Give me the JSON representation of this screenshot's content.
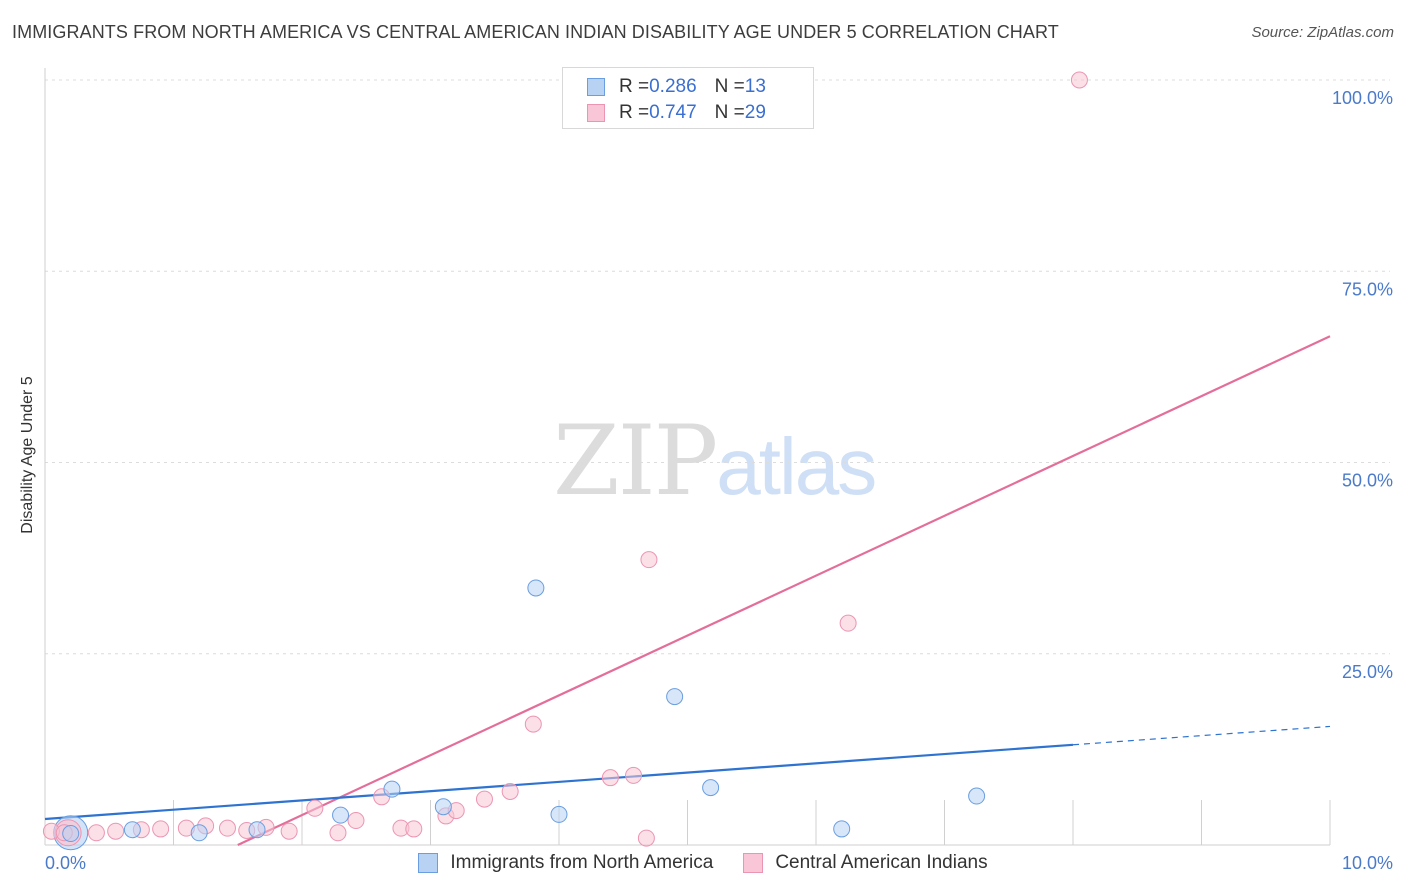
{
  "header": {
    "title": "IMMIGRANTS FROM NORTH AMERICA VS CENTRAL AMERICAN INDIAN DISABILITY AGE UNDER 5 CORRELATION CHART",
    "source": "Source: ZipAtlas.com"
  },
  "watermark": {
    "zip": "ZIP",
    "atlas": "atlas"
  },
  "legend": {
    "series1": {
      "r_label": "R = ",
      "r_value": "0.286",
      "n_label": "N = ",
      "n_value": "13"
    },
    "series2": {
      "r_label": "R = ",
      "r_value": "0.747",
      "n_label": "N = ",
      "n_value": "29"
    }
  },
  "colors": {
    "blue_fill": "#b8d2f4",
    "blue_stroke": "#6a9ee0",
    "blue_line": "#2e73d0",
    "pink_fill": "#f8c6d6",
    "pink_stroke": "#ec95b2",
    "pink_line": "#e46e9a",
    "grid": "#dcdcdc",
    "tick_text": "#4a7ac9"
  },
  "chart_data": {
    "type": "scatter",
    "title": "IMMIGRANTS FROM NORTH AMERICA VS CENTRAL AMERICAN INDIAN DISABILITY AGE UNDER 5 CORRELATION CHART",
    "xlabel": "",
    "ylabel": "Disability Age Under 5",
    "xlim": [
      0,
      10
    ],
    "ylim": [
      0,
      100
    ],
    "x_ticks": [
      "0.0%",
      "10.0%"
    ],
    "y_ticks": [
      "25.0%",
      "50.0%",
      "75.0%",
      "100.0%"
    ],
    "y_tick_values": [
      25,
      50,
      75,
      100
    ],
    "grid": true,
    "legend_position": "top-center",
    "series": [
      {
        "name": "Immigrants from North America",
        "color": "#b8d2f4",
        "points": [
          [
            0.2,
            1.5
          ],
          [
            0.68,
            2.0
          ],
          [
            1.2,
            1.6
          ],
          [
            1.65,
            2.0
          ],
          [
            2.3,
            3.9
          ],
          [
            2.7,
            7.3
          ],
          [
            3.1,
            5.0
          ],
          [
            3.82,
            33.6
          ],
          [
            4.0,
            4.0
          ],
          [
            4.9,
            19.4
          ],
          [
            5.18,
            7.5
          ],
          [
            6.2,
            2.1
          ],
          [
            7.25,
            6.4
          ]
        ],
        "trend": {
          "x": [
            0,
            8.0
          ],
          "y": [
            3.4,
            13.1
          ],
          "dashed_x": [
            8.0,
            10.0
          ],
          "dashed_y": [
            13.1,
            15.5
          ]
        }
      },
      {
        "name": "Central American Indians",
        "color": "#f8c6d6",
        "points": [
          [
            0.05,
            1.8
          ],
          [
            0.15,
            1.6
          ],
          [
            0.4,
            1.6
          ],
          [
            0.55,
            1.8
          ],
          [
            0.75,
            2.0
          ],
          [
            0.9,
            2.1
          ],
          [
            1.1,
            2.2
          ],
          [
            1.25,
            2.5
          ],
          [
            1.42,
            2.2
          ],
          [
            1.57,
            1.9
          ],
          [
            1.72,
            2.3
          ],
          [
            1.9,
            1.8
          ],
          [
            2.1,
            4.8
          ],
          [
            2.28,
            1.6
          ],
          [
            2.42,
            3.2
          ],
          [
            2.62,
            6.3
          ],
          [
            2.77,
            2.2
          ],
          [
            2.87,
            2.1
          ],
          [
            3.12,
            3.8
          ],
          [
            3.2,
            4.5
          ],
          [
            3.42,
            6.0
          ],
          [
            3.62,
            7.0
          ],
          [
            3.8,
            15.8
          ],
          [
            4.4,
            8.8
          ],
          [
            4.58,
            9.1
          ],
          [
            4.68,
            0.9
          ],
          [
            4.7,
            37.3
          ],
          [
            6.25,
            29.0
          ],
          [
            8.05,
            100.0
          ]
        ],
        "trend": {
          "x": [
            1.5,
            10.0
          ],
          "y": [
            0,
            66.5
          ]
        }
      }
    ]
  },
  "bottom_legend": {
    "item1": "Immigrants from North America",
    "item2": "Central American Indians"
  }
}
